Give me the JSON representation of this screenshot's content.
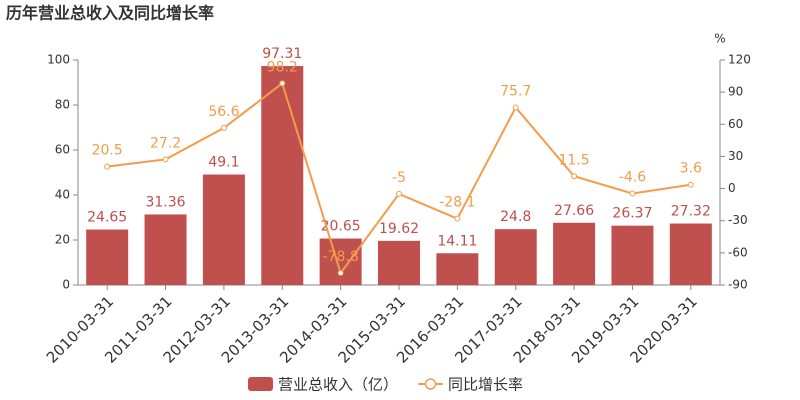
{
  "chart_data": {
    "type": "bar-line",
    "title": "历年营业总收入及同比增长率",
    "y2label": "%",
    "categories": [
      "2010-03-31",
      "2011-03-31",
      "2012-03-31",
      "2013-03-31",
      "2014-03-31",
      "2015-03-31",
      "2016-03-31",
      "2017-03-31",
      "2018-03-31",
      "2019-03-31",
      "2020-03-31"
    ],
    "series": [
      {
        "name": "营业总收入（亿）",
        "type": "bar",
        "color": "#c0504d",
        "values": [
          24.65,
          31.36,
          49.1,
          97.31,
          20.65,
          19.62,
          14.11,
          24.8,
          27.66,
          26.37,
          27.32
        ]
      },
      {
        "name": "同比增长率",
        "type": "line",
        "axis": "y2",
        "color": "#f39c4a",
        "values": [
          20.5,
          27.2,
          56.6,
          98.2,
          -78.8,
          -5,
          -28.1,
          75.7,
          11.5,
          -4.6,
          3.6
        ]
      }
    ],
    "ylim": [
      0,
      100
    ],
    "yticks": [
      0,
      20,
      40,
      60,
      80,
      100
    ],
    "y2lim": [
      -90,
      120
    ],
    "y2ticks": [
      -90,
      -60,
      -30,
      0,
      30,
      60,
      90,
      120
    ]
  }
}
